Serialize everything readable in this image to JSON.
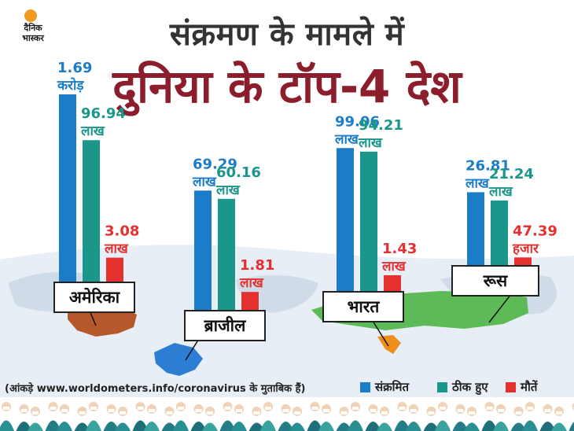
{
  "branding": {
    "logo_line1": "दैनिक",
    "logo_line2": "भास्कर"
  },
  "title": {
    "line1": "संक्रमण के मामले में",
    "line2": "दुनिया के टॉप-4 देश"
  },
  "footer": {
    "source": "(आंकड़े www.worldometers.info/coronavirus के मुताबिक हैं)"
  },
  "colors": {
    "infected": "#1b7cc8",
    "recovered": "#1b968a",
    "deaths": "#e53030",
    "title_dark": "#333333",
    "title_red": "#8b1e2a"
  },
  "chart_data": {
    "type": "bar",
    "title": "संक्रमण के मामले में दुनिया के टॉप-4 देश",
    "categories": [
      "अमेरिका",
      "ब्राजील",
      "भारत",
      "रूस"
    ],
    "series": [
      {
        "name": "संक्रमित",
        "values": [
          16900000,
          6929000,
          9906000,
          2681000
        ],
        "labels": [
          [
            "1.69",
            "करोड़"
          ],
          [
            "69.29",
            "लाख"
          ],
          [
            "99.06",
            "लाख"
          ],
          [
            "26.81",
            "लाख"
          ]
        ]
      },
      {
        "name": "ठीक हुए",
        "values": [
          9694000,
          6016000,
          9421000,
          2124000
        ],
        "labels": [
          [
            "96.94",
            "लाख"
          ],
          [
            "60.16",
            "लाख"
          ],
          [
            "94.21",
            "लाख"
          ],
          [
            "21.24",
            "लाख"
          ]
        ]
      },
      {
        "name": "मौतें",
        "values": [
          308000,
          181000,
          143000,
          47390
        ],
        "labels": [
          [
            "3.08",
            "लाख"
          ],
          [
            "1.81",
            "लाख"
          ],
          [
            "1.43",
            "लाख"
          ],
          [
            "47.39",
            "हजार"
          ]
        ]
      }
    ],
    "legend_position": "bottom-right",
    "grid": false
  }
}
